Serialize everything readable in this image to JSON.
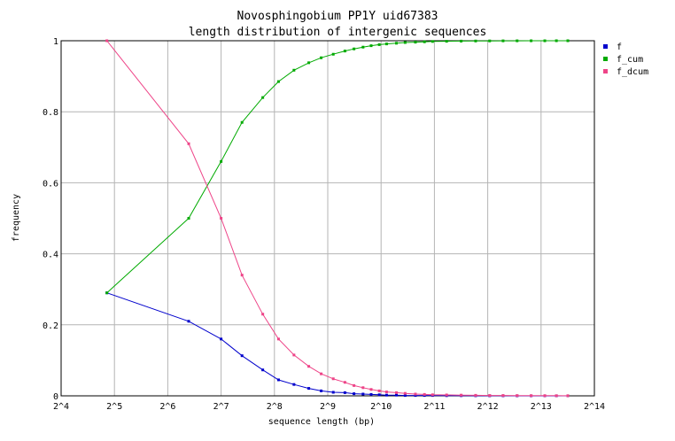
{
  "chart_data": {
    "type": "line",
    "title": "Novosphingobium PP1Y uid67383",
    "subtitle": "length distribution of intergenic sequences",
    "xlabel": "sequence length (bp)",
    "ylabel": "frequency",
    "x_scale": "log2",
    "xlim": [
      16,
      16384
    ],
    "ylim": [
      0,
      1
    ],
    "grid": true,
    "legend_position": "top-right",
    "x_ticks": [
      "2^4",
      "2^5",
      "2^6",
      "2^7",
      "2^8",
      "2^9",
      "2^10",
      "2^11",
      "2^12",
      "2^13",
      "2^14"
    ],
    "x_tick_values": [
      16,
      32,
      64,
      128,
      256,
      512,
      1024,
      2048,
      4096,
      8192,
      16384
    ],
    "y_ticks": [
      "0",
      "0.2",
      "0.4",
      "0.6",
      "0.8",
      "1"
    ],
    "y_tick_values": [
      0,
      0.2,
      0.4,
      0.6,
      0.8,
      1
    ],
    "x": [
      29,
      84,
      128,
      168,
      220,
      270,
      330,
      400,
      470,
      550,
      640,
      720,
      810,
      900,
      1000,
      1100,
      1250,
      1400,
      1600,
      1800,
      2000,
      2400,
      2900,
      3500,
      4200,
      5000,
      6000,
      7200,
      8600,
      10000,
      11600
    ],
    "series": [
      {
        "name": "f",
        "color": "#0000cc",
        "values": [
          0.29,
          0.21,
          0.16,
          0.113,
          0.073,
          0.045,
          0.032,
          0.021,
          0.014,
          0.01,
          0.009,
          0.006,
          0.005,
          0.004,
          0.003,
          0.002,
          0.002,
          0.001,
          0.001,
          0.001,
          0.001,
          0.0005,
          0.0005,
          0.0003,
          0.0002,
          0.0002,
          0.0001,
          0.0001,
          0.0001,
          0.0001,
          0.0001
        ]
      },
      {
        "name": "f_cum",
        "color": "#00aa00",
        "values": [
          0.29,
          0.5,
          0.66,
          0.77,
          0.84,
          0.885,
          0.917,
          0.938,
          0.952,
          0.962,
          0.971,
          0.977,
          0.982,
          0.986,
          0.989,
          0.991,
          0.993,
          0.995,
          0.996,
          0.997,
          0.998,
          0.9985,
          0.999,
          0.9993,
          0.9995,
          0.9997,
          0.9998,
          0.9999,
          0.9999,
          1.0,
          1.0
        ]
      },
      {
        "name": "f_dcum",
        "color": "#ee4488",
        "values": [
          1.0,
          0.71,
          0.5,
          0.34,
          0.23,
          0.16,
          0.115,
          0.083,
          0.062,
          0.048,
          0.038,
          0.029,
          0.023,
          0.018,
          0.014,
          0.011,
          0.009,
          0.007,
          0.005,
          0.004,
          0.003,
          0.0025,
          0.002,
          0.0015,
          0.001,
          0.001,
          0.0008,
          0.0006,
          0.0005,
          0.0004,
          0.0003
        ]
      }
    ]
  }
}
